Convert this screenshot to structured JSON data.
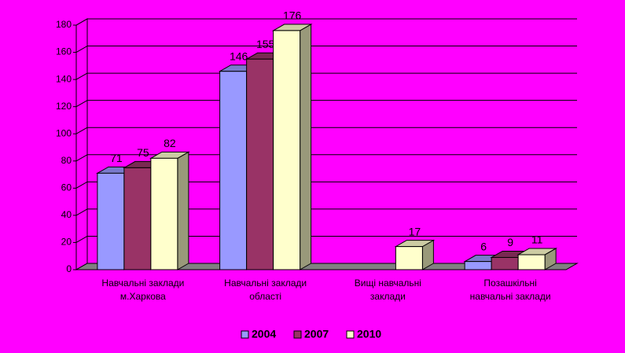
{
  "chart_data": {
    "type": "bar3d",
    "categories": [
      [
        "Навчальні заклади",
        "м.Харкова"
      ],
      [
        "Навчальні заклади",
        "області"
      ],
      [
        "Вищі навчальні",
        "заклади"
      ],
      [
        "Позашкільні",
        "навчальні заклади"
      ]
    ],
    "series": [
      {
        "name": "2004",
        "color": "#9999ff",
        "values": [
          71,
          146,
          null,
          6
        ]
      },
      {
        "name": "2007",
        "color": "#993366",
        "values": [
          75,
          155,
          null,
          9
        ]
      },
      {
        "name": "2010",
        "color": "#ffffcc",
        "values": [
          82,
          176,
          17,
          11
        ]
      }
    ],
    "ylim": [
      0,
      180
    ],
    "yticks": [
      0,
      20,
      40,
      60,
      80,
      100,
      120,
      140,
      160,
      180
    ],
    "grid": true,
    "legend": "bottom"
  }
}
